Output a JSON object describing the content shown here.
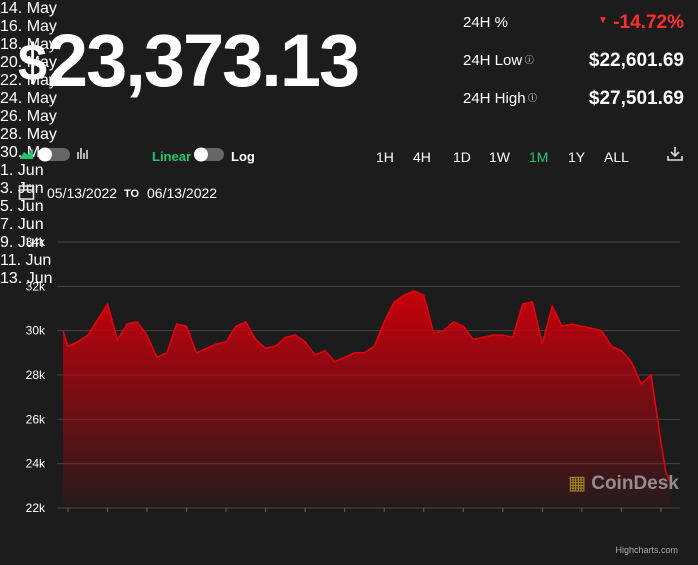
{
  "header": {
    "currency": "$",
    "price": "23,373.13",
    "stats": [
      {
        "label": "24H %",
        "value": "-14.72%"
      },
      {
        "label": "24H Low",
        "value": "$22,601.69"
      },
      {
        "label": "24H High",
        "value": "$27,501.69"
      }
    ]
  },
  "controls": {
    "scale_options": [
      "Linear",
      "Log"
    ],
    "ranges": [
      "1H",
      "4H",
      "1D",
      "1W",
      "1M",
      "1Y",
      "ALL"
    ],
    "active_range": "1M",
    "date_from": "05/13/2022",
    "date_separator": "TO",
    "date_to": "06/13/2022"
  },
  "chart_data": {
    "type": "area",
    "color": "#e8000f",
    "grid": true,
    "watermark": "CoinDesk",
    "credits": "Highcharts.com",
    "x": [
      "2022-05-13T18:00",
      "2022-05-14T00:00",
      "2022-05-14T12:00",
      "2022-05-15T00:00",
      "2022-05-15T12:00",
      "2022-05-16T00:00",
      "2022-05-16T12:00",
      "2022-05-17T00:00",
      "2022-05-17T12:00",
      "2022-05-18T00:00",
      "2022-05-18T12:00",
      "2022-05-19T00:00",
      "2022-05-19T12:00",
      "2022-05-20T00:00",
      "2022-05-20T12:00",
      "2022-05-21T00:00",
      "2022-05-21T12:00",
      "2022-05-22T00:00",
      "2022-05-22T12:00",
      "2022-05-23T00:00",
      "2022-05-23T12:00",
      "2022-05-24T00:00",
      "2022-05-24T12:00",
      "2022-05-25T00:00",
      "2022-05-25T12:00",
      "2022-05-26T00:00",
      "2022-05-26T12:00",
      "2022-05-27T00:00",
      "2022-05-27T12:00",
      "2022-05-28T00:00",
      "2022-05-28T12:00",
      "2022-05-29T00:00",
      "2022-05-29T12:00",
      "2022-05-30T00:00",
      "2022-05-30T12:00",
      "2022-05-31T00:00",
      "2022-05-31T12:00",
      "2022-06-01T00:00",
      "2022-06-01T12:00",
      "2022-06-02T00:00",
      "2022-06-02T12:00",
      "2022-06-03T00:00",
      "2022-06-03T12:00",
      "2022-06-04T00:00",
      "2022-06-04T12:00",
      "2022-06-05T00:00",
      "2022-06-05T12:00",
      "2022-06-06T00:00",
      "2022-06-06T12:00",
      "2022-06-07T00:00",
      "2022-06-07T12:00",
      "2022-06-08T00:00",
      "2022-06-08T12:00",
      "2022-06-09T00:00",
      "2022-06-09T12:00",
      "2022-06-10T00:00",
      "2022-06-10T12:00",
      "2022-06-11T00:00",
      "2022-06-11T12:00",
      "2022-06-12T00:00",
      "2022-06-12T12:00",
      "2022-06-13T00:00",
      "2022-06-13T06:00",
      "2022-06-13T11:00"
    ],
    "values": [
      30000,
      29300,
      29500,
      29800,
      30500,
      31200,
      29600,
      30300,
      30400,
      29800,
      28800,
      29000,
      30300,
      30200,
      29000,
      29200,
      29400,
      29500,
      30200,
      30400,
      29600,
      29200,
      29300,
      29700,
      29800,
      29500,
      28900,
      29100,
      28600,
      28800,
      29000,
      29000,
      29300,
      30400,
      31300,
      31600,
      31800,
      31600,
      29900,
      30000,
      30400,
      30200,
      29600,
      29700,
      29800,
      29800,
      29700,
      31200,
      31300,
      29400,
      31100,
      30200,
      30300,
      30200,
      30100,
      30000,
      29300,
      29100,
      28600,
      27600,
      28000,
      25000,
      23600,
      23200
    ],
    "xlim": [
      "2022-05-13T18:00",
      "2022-06-13T11:00"
    ],
    "xticks": [
      {
        "value": "2022-05-14T00:00",
        "label": "14. May"
      },
      {
        "value": "2022-05-16T00:00",
        "label": "16. May"
      },
      {
        "value": "2022-05-18T00:00",
        "label": "18. May"
      },
      {
        "value": "2022-05-20T00:00",
        "label": "20. May"
      },
      {
        "value": "2022-05-22T00:00",
        "label": "22. May"
      },
      {
        "value": "2022-05-24T00:00",
        "label": "24. May"
      },
      {
        "value": "2022-05-26T00:00",
        "label": "26. May"
      },
      {
        "value": "2022-05-28T00:00",
        "label": "28. May"
      },
      {
        "value": "2022-05-30T00:00",
        "label": "30. May"
      },
      {
        "value": "2022-06-01T00:00",
        "label": "1. Jun"
      },
      {
        "value": "2022-06-03T00:00",
        "label": "3. Jun"
      },
      {
        "value": "2022-06-05T00:00",
        "label": "5. Jun"
      },
      {
        "value": "2022-06-07T00:00",
        "label": "7. Jun"
      },
      {
        "value": "2022-06-09T00:00",
        "label": "9. Jun"
      },
      {
        "value": "2022-06-11T00:00",
        "label": "11. Jun"
      },
      {
        "value": "2022-06-13T00:00",
        "label": "13. Jun"
      }
    ],
    "ylim": [
      22000,
      34000
    ],
    "yticks": [
      {
        "value": 22000,
        "label": "22k"
      },
      {
        "value": 24000,
        "label": "24k"
      },
      {
        "value": 26000,
        "label": "26k"
      },
      {
        "value": 28000,
        "label": "28k"
      },
      {
        "value": 30000,
        "label": "30k"
      },
      {
        "value": 32000,
        "label": "32k"
      },
      {
        "value": 34000,
        "label": "34k"
      }
    ]
  }
}
